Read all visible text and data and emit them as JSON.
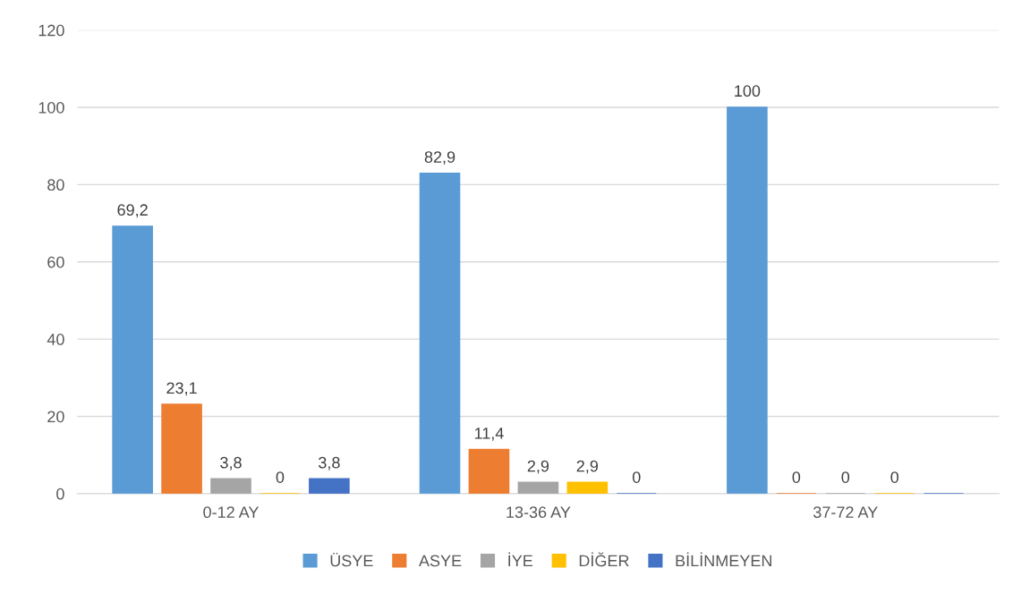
{
  "chart_data": {
    "type": "bar",
    "categories": [
      "0-12 AY",
      "13-36 AY",
      "37-72 AY"
    ],
    "series": [
      {
        "name": "ÜSYE",
        "color": "#5b9bd5",
        "values": [
          69.2,
          82.9,
          100
        ],
        "value_labels": [
          "69,2",
          "82,9",
          "100"
        ]
      },
      {
        "name": "ASYE",
        "color": "#ed7d31",
        "values": [
          23.1,
          11.4,
          0
        ],
        "value_labels": [
          "23,1",
          "11,4",
          "0"
        ]
      },
      {
        "name": "İYE",
        "color": "#a5a5a5",
        "values": [
          3.8,
          2.9,
          0
        ],
        "value_labels": [
          "3,8",
          "2,9",
          "0"
        ]
      },
      {
        "name": "DİĞER",
        "color": "#ffc000",
        "values": [
          0,
          2.9,
          0
        ],
        "value_labels": [
          "0",
          "2,9",
          "0"
        ]
      },
      {
        "name": "BİLİNMEYEN",
        "color": "#4472c4",
        "values": [
          3.8,
          0,
          0
        ],
        "value_labels": [
          "3,8",
          "0",
          null
        ]
      }
    ],
    "ylim": [
      0,
      120
    ],
    "yticks": [
      0,
      20,
      40,
      60,
      80,
      100,
      120
    ],
    "grid": "y",
    "legend": "bottom"
  }
}
